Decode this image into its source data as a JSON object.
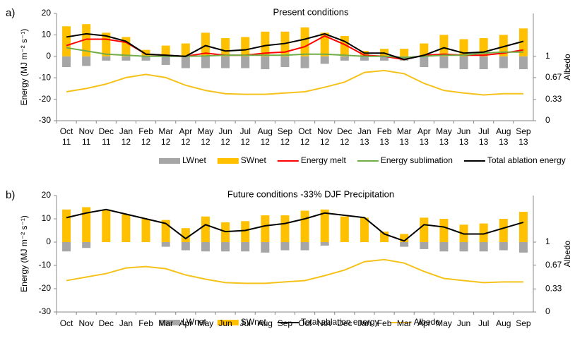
{
  "chart_data": [
    {
      "type": "combo",
      "panel_label": "a)",
      "title": "Present conditions",
      "ylabel": "Energy (MJ m⁻² s⁻¹)",
      "y2label": "Albedo",
      "categories": [
        "Oct 11",
        "Nov 11",
        "Dec 11",
        "Jan 12",
        "Feb 12",
        "Mar 12",
        "Apr 12",
        "May 12",
        "Jun 12",
        "Jul 12",
        "Aug 12",
        "Sep 12",
        "Oct 12",
        "Nov 12",
        "Dec 12",
        "Jan 13",
        "Feb 13",
        "Mar 13",
        "Apr 13",
        "May 13",
        "Jun 13",
        "Jul 13",
        "Aug 13",
        "Sep 13"
      ],
      "ylim": [
        -30,
        20
      ],
      "yticks": [
        -30,
        -20,
        -10,
        0,
        10,
        20
      ],
      "y2lim": [
        0,
        1.6667
      ],
      "y2ticks": [
        0,
        0.33,
        0.67,
        1
      ],
      "series": [
        {
          "name": "LWnet",
          "type": "bar",
          "color": "#a6a6a6",
          "values": [
            -5,
            -4.5,
            -2,
            -2,
            -2,
            -4,
            -5.5,
            -5.5,
            -5.5,
            -5.5,
            -6,
            -5,
            -5.5,
            -3.5,
            -2,
            -2,
            -2,
            -2,
            -5,
            -5.5,
            -6,
            -6,
            -5.5,
            -6
          ]
        },
        {
          "name": "SWnet",
          "type": "bar",
          "color": "#ffc000",
          "values": [
            14,
            15,
            11,
            9,
            3,
            5,
            6,
            11,
            8.5,
            9,
            11.5,
            11.5,
            13.5,
            11,
            9.5,
            2.5,
            3.5,
            3.5,
            6,
            10,
            8,
            8.5,
            10,
            13
          ]
        },
        {
          "name": "Energy melt",
          "type": "line",
          "color": "#ff0000",
          "values": [
            5,
            8,
            8,
            6.5,
            1,
            0.5,
            0,
            1.5,
            0.5,
            0.5,
            1.5,
            2,
            4.5,
            9.5,
            5.5,
            0.5,
            0,
            -1.5,
            0.5,
            1,
            0.5,
            0.5,
            1.5,
            3
          ]
        },
        {
          "name": "Energy sublimation",
          "type": "line",
          "color": "#70ad47",
          "values": [
            4,
            2.5,
            1,
            0.5,
            0,
            0,
            0,
            0.2,
            0.5,
            0.5,
            0.5,
            0.5,
            1,
            1,
            0.5,
            0,
            0,
            -0.5,
            0,
            0.5,
            0.5,
            1.5,
            2,
            2
          ]
        },
        {
          "name": "Total ablation energy",
          "type": "line",
          "color": "#000000",
          "values": [
            9,
            10.5,
            9.5,
            7,
            1,
            0.5,
            0,
            5,
            2.5,
            3,
            5,
            6,
            8,
            10.5,
            7,
            1.5,
            1.5,
            -1.5,
            0.5,
            4,
            1.5,
            2,
            4.5,
            7
          ]
        },
        {
          "name": "Albedo",
          "type": "line",
          "axis": "y2",
          "color": "#f5c21b",
          "values": [
            0.45,
            0.5,
            0.57,
            0.67,
            0.72,
            0.67,
            0.55,
            0.47,
            0.42,
            0.41,
            0.41,
            0.43,
            0.45,
            0.52,
            0.6,
            0.75,
            0.78,
            0.73,
            0.58,
            0.47,
            0.43,
            0.4,
            0.42,
            0.42
          ]
        }
      ]
    },
    {
      "type": "combo",
      "panel_label": "b)",
      "title": "Future conditions -33% DJF Precipitation",
      "ylabel": "Energy (MJ m⁻² s⁻¹)",
      "y2label": "Albedo",
      "categories": [
        "Oct",
        "Nov",
        "Dec",
        "Jan",
        "Feb",
        "Mar",
        "Apr",
        "May",
        "Jun",
        "Jul",
        "Aug",
        "Sep",
        "Oct",
        "Nov",
        "Dec",
        "Jan",
        "Feb",
        "Mar",
        "Apr",
        "May",
        "Jun",
        "Jul",
        "Aug",
        "Sep"
      ],
      "ylim": [
        -30,
        20
      ],
      "yticks": [
        -30,
        -20,
        -10,
        0,
        10,
        20
      ],
      "y2lim": [
        0,
        1.6667
      ],
      "y2ticks": [
        0,
        0.33,
        0.67,
        1
      ],
      "series": [
        {
          "name": "LWnet",
          "type": "bar",
          "color": "#a6a6a6",
          "values": [
            -4,
            -2.5,
            0,
            0,
            0,
            -2,
            -3.5,
            -4,
            -4,
            -4,
            -4.5,
            -3.5,
            -3.5,
            -1.5,
            0,
            0,
            0,
            -2,
            -3,
            -4,
            -4,
            -4,
            -3.5,
            -4.5
          ]
        },
        {
          "name": "SWnet",
          "type": "bar",
          "color": "#ffc000",
          "values": [
            14,
            15,
            14,
            12,
            10,
            9.5,
            6,
            11,
            8.5,
            9,
            11.5,
            11.5,
            13.5,
            14,
            11,
            10.5,
            4.5,
            3.5,
            10.5,
            10,
            7.5,
            8,
            10,
            13
          ]
        },
        {
          "name": "Total ablation energy",
          "type": "line",
          "color": "#000000",
          "values": [
            10.5,
            12.5,
            14,
            12,
            10,
            8,
            1.5,
            7.5,
            4.5,
            5,
            7,
            8,
            10,
            12.5,
            11.5,
            10.5,
            3.5,
            0.5,
            7.5,
            6.5,
            3.5,
            3.5,
            6,
            8.5
          ]
        },
        {
          "name": "Albedo",
          "type": "line",
          "axis": "y2",
          "color": "#f5c21b",
          "values": [
            0.45,
            0.5,
            0.55,
            0.63,
            0.65,
            0.62,
            0.53,
            0.47,
            0.42,
            0.41,
            0.41,
            0.43,
            0.45,
            0.52,
            0.6,
            0.72,
            0.75,
            0.7,
            0.58,
            0.48,
            0.45,
            0.42,
            0.43,
            0.43
          ]
        }
      ]
    }
  ]
}
